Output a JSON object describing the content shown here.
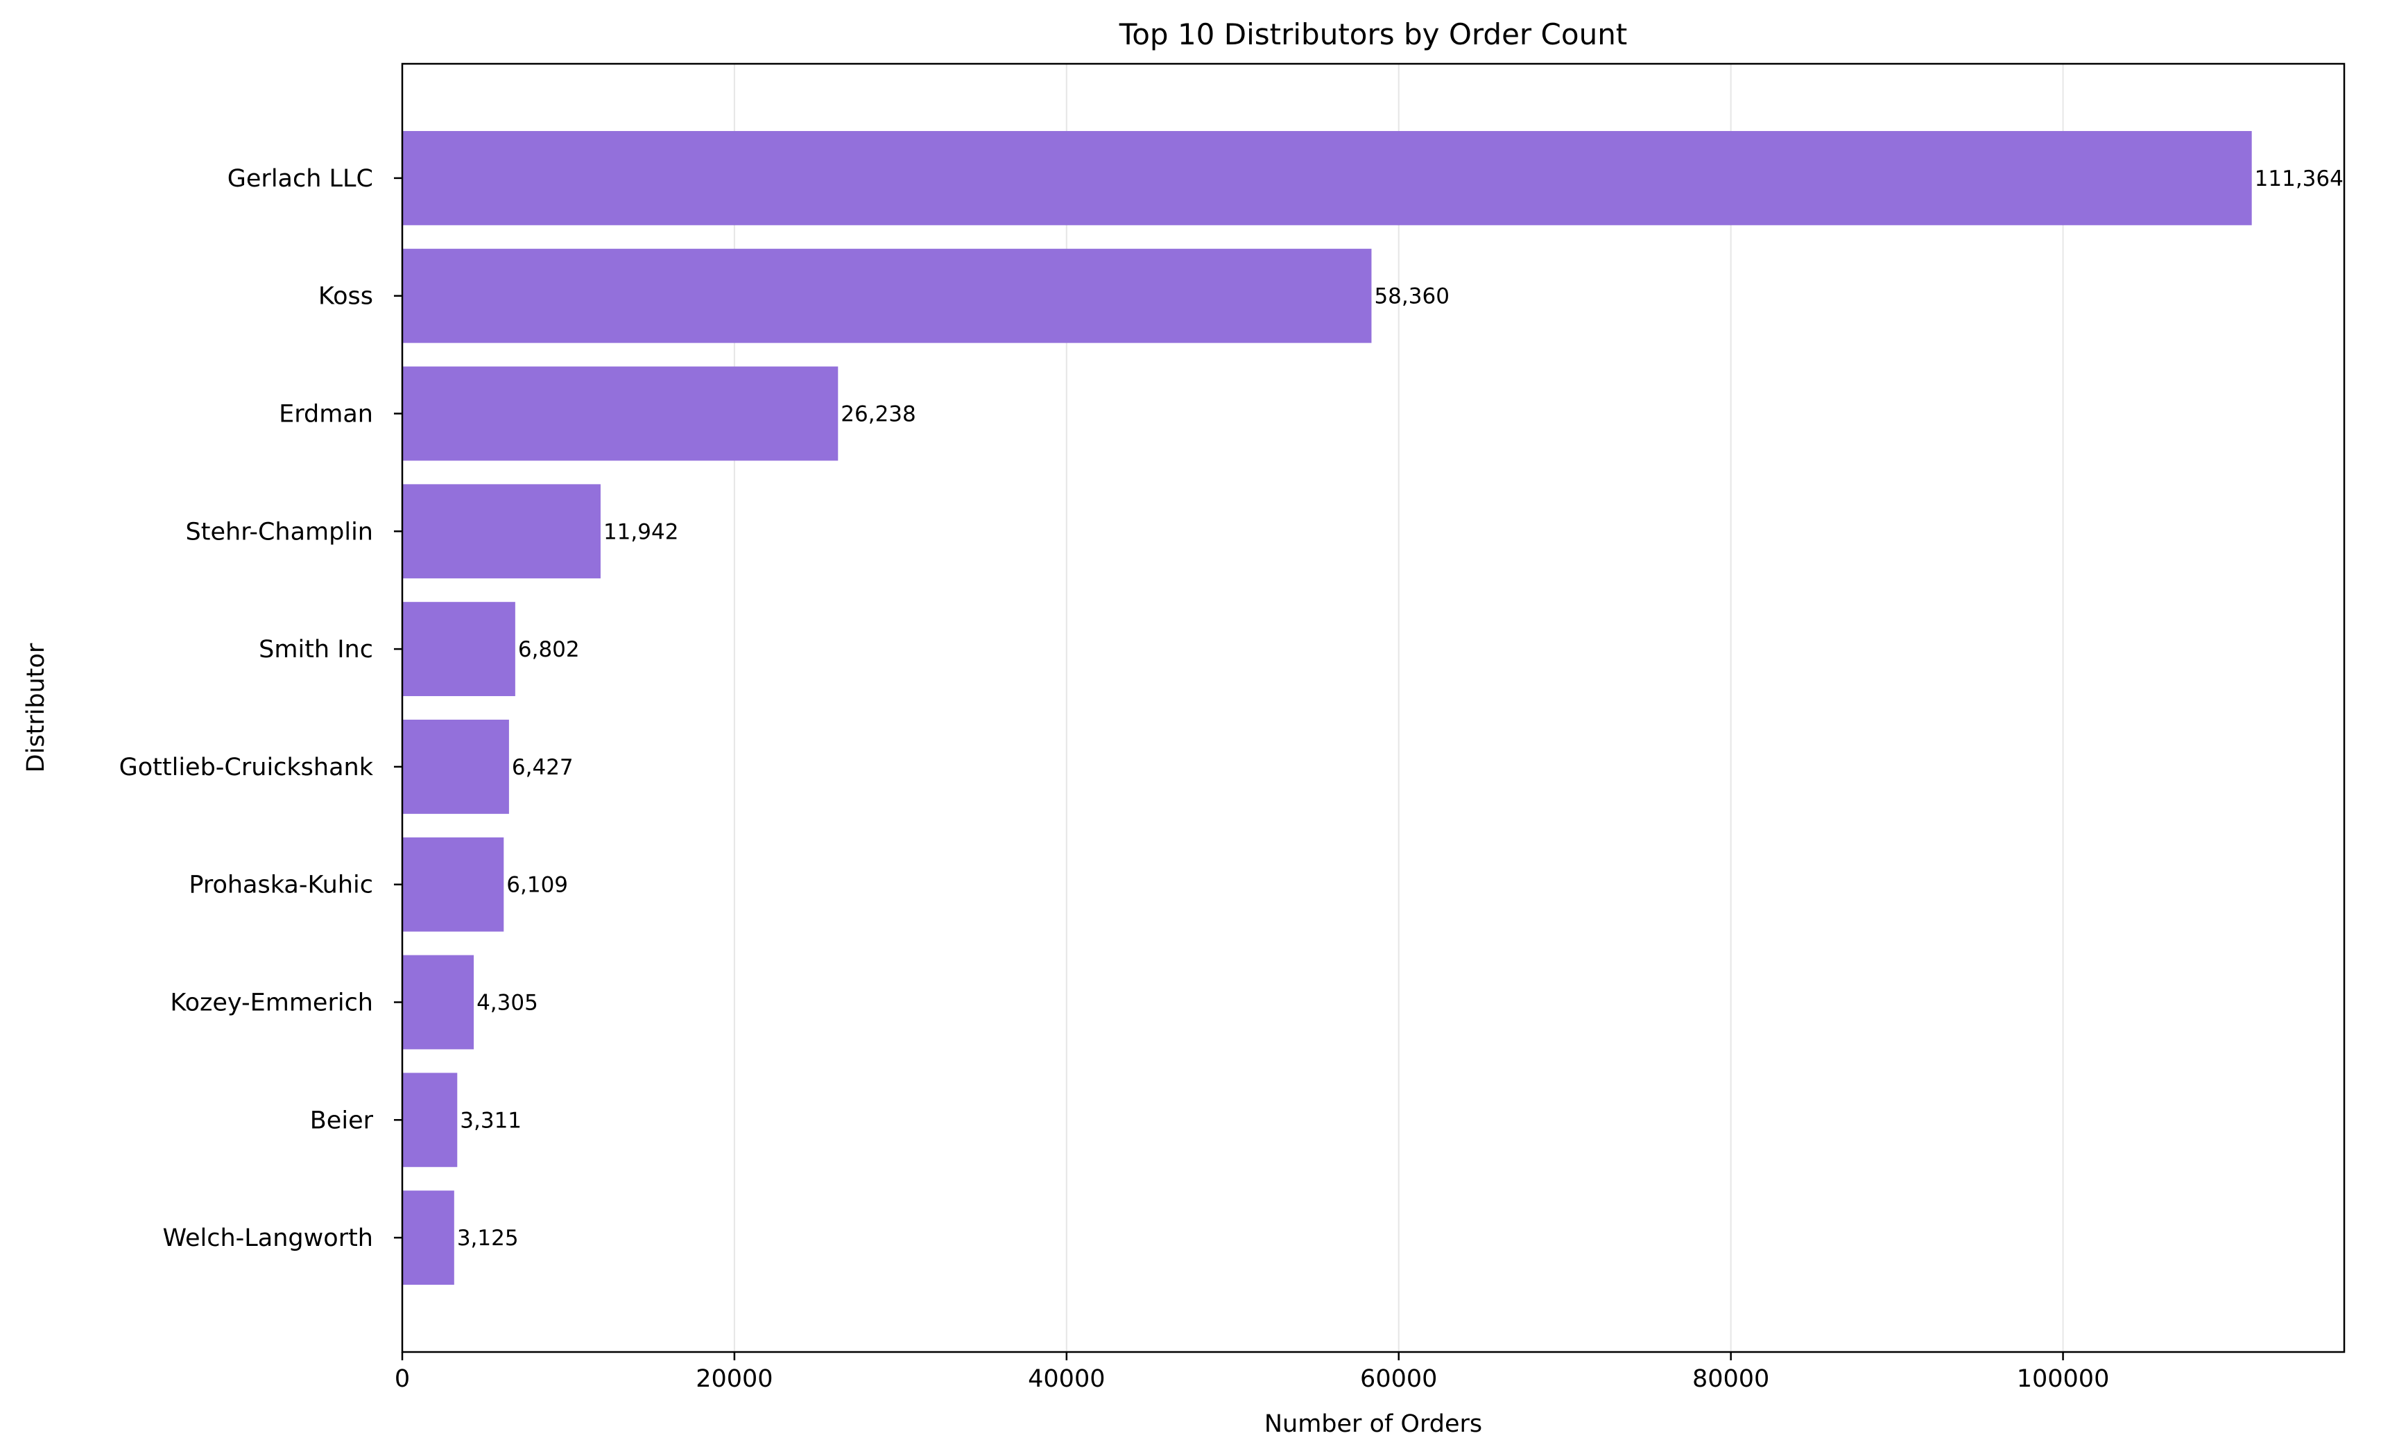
{
  "chart_data": {
    "type": "bar",
    "orientation": "horizontal",
    "title": "Top 10 Distributors by Order Count",
    "xlabel": "Number of Orders",
    "ylabel": "Distributor",
    "categories": [
      "Gerlach LLC",
      "Koss",
      "Erdman",
      "Stehr-Champlin",
      "Smith Inc",
      "Gottlieb-Cruickshank",
      "Prohaska-Kuhic",
      "Kozey-Emmerich",
      "Beier",
      "Welch-Langworth"
    ],
    "values": [
      111364,
      58360,
      26238,
      11942,
      6802,
      6427,
      6109,
      4305,
      3311,
      3125
    ],
    "value_labels": [
      "111,364",
      "58,360",
      "26,238",
      "11,942",
      "6,802",
      "6,427",
      "6,109",
      "4,305",
      "3,311",
      "3,125"
    ],
    "xticks": [
      0,
      20000,
      40000,
      60000,
      80000,
      100000
    ],
    "xlim": [
      0,
      116932
    ],
    "grid": "vertical",
    "bar_color": "#9370DB"
  }
}
